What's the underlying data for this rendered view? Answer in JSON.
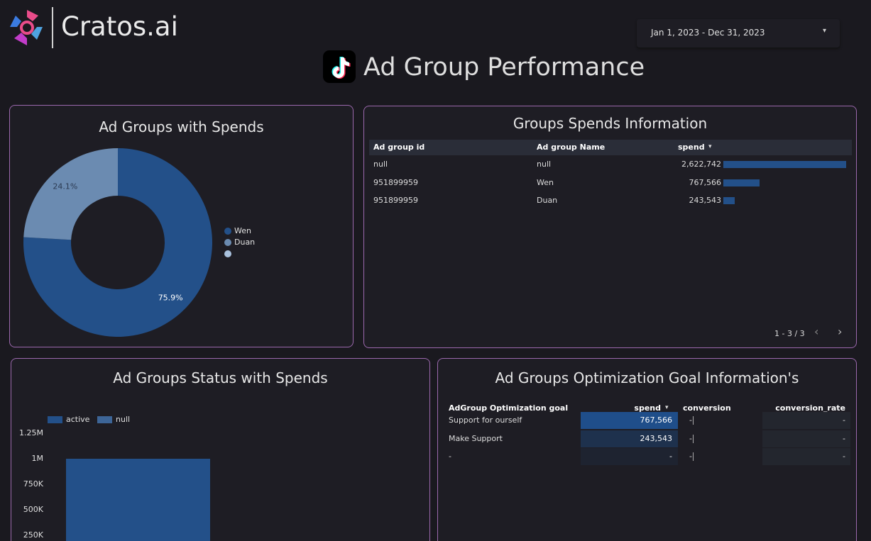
{
  "header": {
    "logo_text": "Cratos.ai",
    "date_range": "Jan 1, 2023 - Dec 31, 2023",
    "title": "Ad Group Performance"
  },
  "chart_data": [
    {
      "type": "pie",
      "title": "Ad Groups with Spends",
      "categories": [
        "Wen",
        "Duan",
        null
      ],
      "values": [
        75.9,
        24.1,
        0
      ],
      "value_labels": [
        "75.9%",
        "24.1%",
        null
      ],
      "colors": [
        "#235089",
        "#6b8bb1",
        "#a9c1dd"
      ],
      "donut": true
    },
    {
      "type": "bar",
      "title": "Ad Groups Status with Spends",
      "categories": [
        null
      ],
      "series": [
        {
          "name": "active",
          "color": "#235089",
          "values": [
            1000000
          ]
        },
        {
          "name": "null",
          "color": "#3d6597",
          "values": [
            0
          ]
        }
      ],
      "ylim": [
        0,
        1250000
      ],
      "yticks": [
        {
          "value": 250000,
          "label": "250K"
        },
        {
          "value": 500000,
          "label": "500K"
        },
        {
          "value": 750000,
          "label": "750K"
        },
        {
          "value": 1000000,
          "label": "1M"
        },
        {
          "value": 1250000,
          "label": "1.25M"
        }
      ],
      "legend": "top-left",
      "grid": false
    }
  ],
  "spends_table": {
    "title": "Groups Spends Information",
    "columns": [
      "Ad group id",
      "Ad group Name",
      "spend"
    ],
    "rows": [
      [
        "null",
        "null",
        {
          "value": 2622742,
          "label": "2,622,742"
        }
      ],
      [
        "951899959",
        "Wen",
        {
          "value": 767566,
          "label": "767,566"
        }
      ],
      [
        "951899959",
        "Duan",
        {
          "value": 243543,
          "label": "243,543"
        }
      ]
    ],
    "pager": "1 - 3 / 3",
    "bar_color": "#235089"
  },
  "goal_table": {
    "title": "Ad Groups Optimization Goal Information's",
    "columns": [
      "AdGroup Optimization goal",
      "spend",
      "conversion",
      "conversion_rate"
    ],
    "rows": [
      [
        "Support for ourself",
        {
          "value": 767566,
          "label": "767,566"
        },
        "-",
        "-"
      ],
      [
        "Make Support",
        {
          "value": 243543,
          "label": "243,543"
        },
        "-",
        "-"
      ],
      [
        "-",
        "-",
        "-",
        "-"
      ]
    ]
  }
}
